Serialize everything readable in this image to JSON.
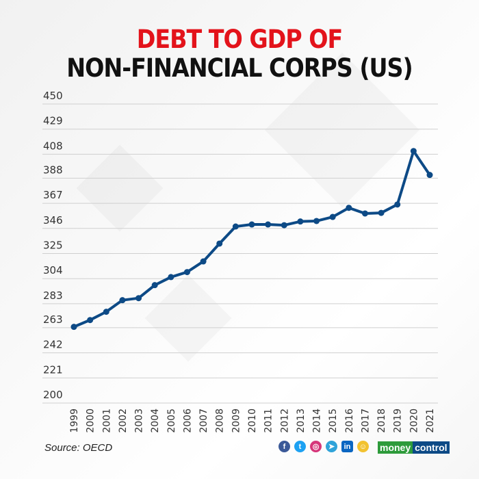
{
  "title_line1": "DEBT TO GDP OF",
  "title_line2": "NON-FINANCIAL CORPS (US)",
  "source": "Source: OECD",
  "colors": {
    "title_accent": "#e3131b",
    "line": "#0d4a86",
    "logo_green": "#2e9b3b",
    "logo_blue": "#0d4a86"
  },
  "social_icons": [
    "facebook-icon",
    "twitter-icon",
    "instagram-icon",
    "telegram-icon",
    "linkedin-icon",
    "snapchat-icon"
  ],
  "logo": {
    "part1": "money",
    "part2": "control"
  },
  "chart_data": {
    "type": "line",
    "title": "DEBT TO GDP OF NON-FINANCIAL CORPS (US)",
    "categories": [
      "1999",
      "2000",
      "2001",
      "2002",
      "2003",
      "2004",
      "2005",
      "2006",
      "2007",
      "2008",
      "2009",
      "2010",
      "2011",
      "2012",
      "2013",
      "2014",
      "2015",
      "2016",
      "2017",
      "2018",
      "2019",
      "2020",
      "2021"
    ],
    "values": [
      263.7,
      269.4,
      276.3,
      286,
      287.7,
      298.6,
      305.3,
      309.5,
      318.4,
      333.3,
      347.6,
      349.3,
      349.3,
      348.7,
      351.8,
      352.2,
      355.6,
      363.2,
      358.5,
      359,
      366,
      410.7,
      390.7
    ],
    "yticks": [
      "200",
      "221",
      "242",
      "263",
      "283",
      "304",
      "325",
      "346",
      "367",
      "388",
      "408",
      "429",
      "450"
    ],
    "ylim": [
      200,
      450
    ],
    "grid": true,
    "markers": true
  }
}
